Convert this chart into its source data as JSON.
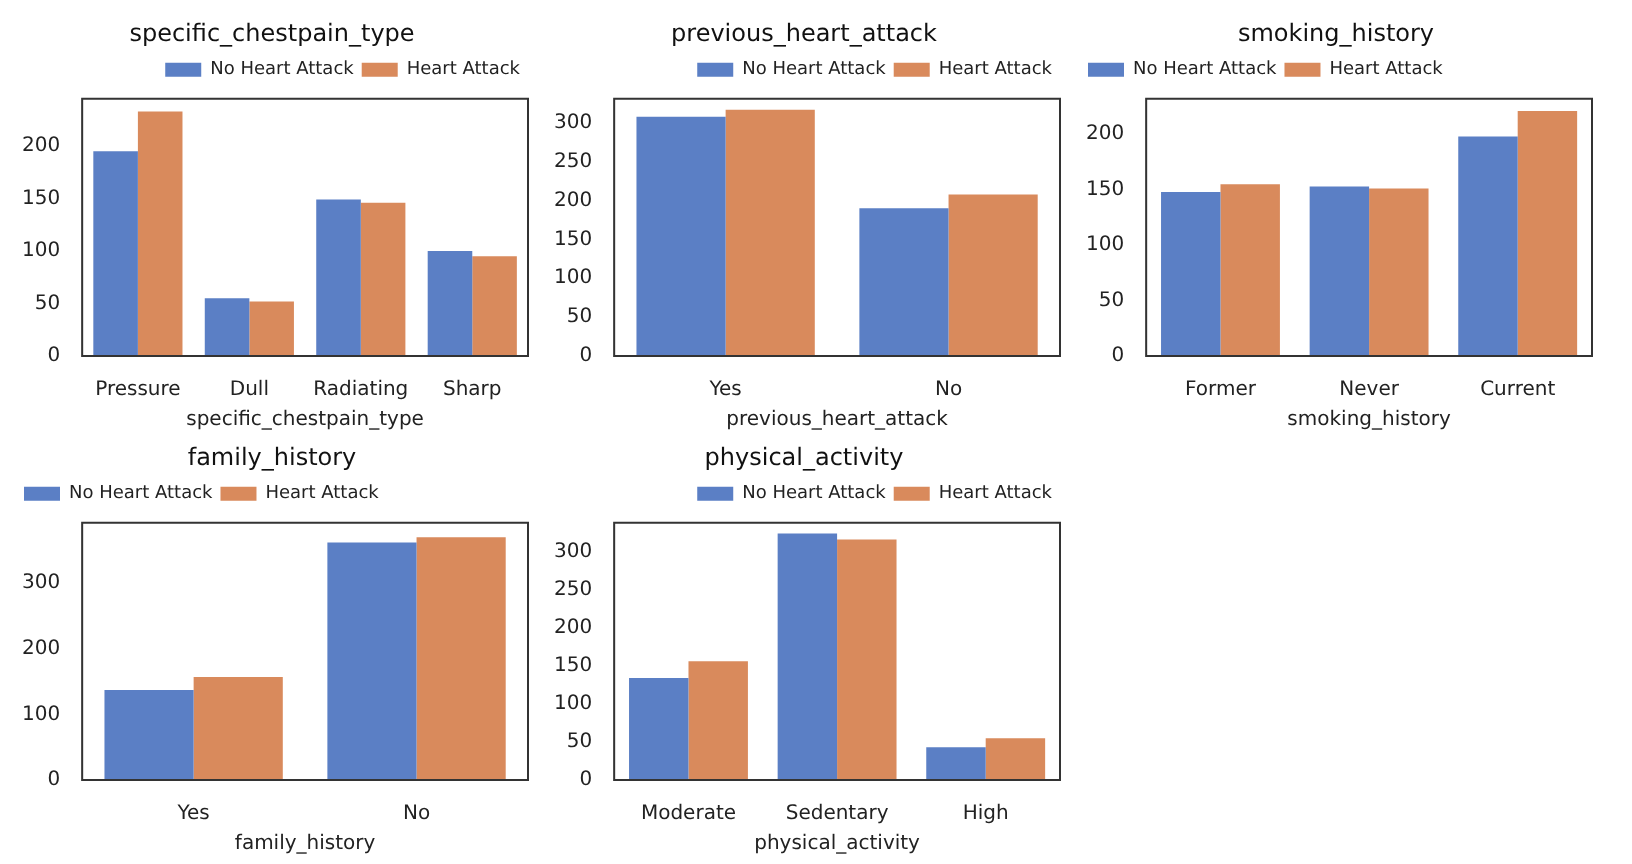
{
  "chart_data": [
    {
      "type": "bar",
      "title": "specific_chestpain_type",
      "xlabel": "specific_chestpain_type",
      "categories": [
        "Pressure",
        "Dull",
        "Radiating",
        "Sharp"
      ],
      "series": [
        {
          "name": "No Heart Attack",
          "color": "#5b7fc5",
          "values": [
            195,
            55,
            149,
            100
          ]
        },
        {
          "name": "Heart Attack",
          "color": "#d98a5c",
          "values": [
            233,
            52,
            146,
            95
          ]
        }
      ],
      "ylim": [
        0,
        245
      ],
      "yticks": [
        0,
        50,
        100,
        150,
        200
      ],
      "grid": false,
      "legend": "top right"
    },
    {
      "type": "bar",
      "title": "previous_heart_attack",
      "xlabel": "previous_heart_attack",
      "categories": [
        "Yes",
        "No"
      ],
      "series": [
        {
          "name": "No Heart Attack",
          "color": "#5b7fc5",
          "values": [
            308,
            190
          ]
        },
        {
          "name": "Heart Attack",
          "color": "#d98a5c",
          "values": [
            317,
            208
          ]
        }
      ],
      "ylim": [
        0,
        331
      ],
      "yticks": [
        0,
        50,
        100,
        150,
        200,
        250,
        300
      ],
      "grid": false,
      "legend": "top right"
    },
    {
      "type": "bar",
      "title": "smoking_history",
      "xlabel": "smoking_history",
      "categories": [
        "Former",
        "Never",
        "Current"
      ],
      "series": [
        {
          "name": "No Heart Attack",
          "color": "#5b7fc5",
          "values": [
            148,
            153,
            198
          ]
        },
        {
          "name": "Heart Attack",
          "color": "#d98a5c",
          "values": [
            155,
            151,
            221
          ]
        }
      ],
      "ylim": [
        0,
        232
      ],
      "yticks": [
        0,
        50,
        100,
        150,
        200
      ],
      "grid": false,
      "legend": "top left"
    },
    {
      "type": "bar",
      "title": "family_history",
      "xlabel": "family_history",
      "categories": [
        "Yes",
        "No"
      ],
      "series": [
        {
          "name": "No Heart Attack",
          "color": "#5b7fc5",
          "values": [
            137,
            362
          ]
        },
        {
          "name": "Heart Attack",
          "color": "#d98a5c",
          "values": [
            157,
            370
          ]
        }
      ],
      "ylim": [
        0,
        392
      ],
      "yticks": [
        0,
        100,
        200,
        300
      ],
      "grid": false,
      "legend": "top left"
    },
    {
      "type": "bar",
      "title": "physical_activity",
      "xlabel": "physical_activity",
      "categories": [
        "Moderate",
        "Sedentary",
        "High"
      ],
      "series": [
        {
          "name": "No Heart Attack",
          "color": "#5b7fc5",
          "values": [
            134,
            324,
            43
          ]
        },
        {
          "name": "Heart Attack",
          "color": "#d98a5c",
          "values": [
            156,
            316,
            55
          ]
        }
      ],
      "ylim": [
        0,
        338
      ],
      "yticks": [
        0,
        50,
        100,
        150,
        200,
        250,
        300
      ],
      "grid": false,
      "legend": "top right"
    }
  ]
}
